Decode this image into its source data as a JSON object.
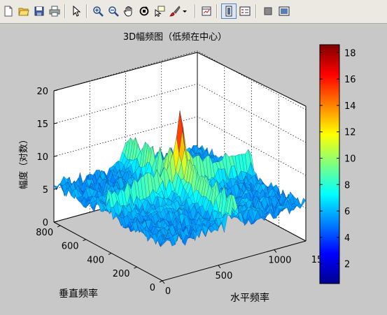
{
  "toolbar": {
    "buttons": [
      {
        "name": "new-figure-icon"
      },
      {
        "name": "open-file-icon"
      },
      {
        "name": "save-icon"
      },
      {
        "name": "print-icon"
      },
      {
        "name": "pointer-arrow-icon"
      },
      {
        "name": "zoom-in-icon"
      },
      {
        "name": "zoom-out-icon"
      },
      {
        "name": "pan-hand-icon"
      },
      {
        "name": "rotate-3d-icon"
      },
      {
        "name": "data-cursor-icon"
      },
      {
        "name": "brush-icon"
      },
      {
        "name": "brush-dropdown-icon"
      },
      {
        "name": "link-plot-icon"
      },
      {
        "name": "colorbar-icon"
      },
      {
        "name": "legend-icon"
      },
      {
        "name": "hide-plot-tools-icon"
      },
      {
        "name": "show-plot-tools-icon"
      }
    ]
  },
  "chart_data": {
    "type": "surface",
    "title": "3D幅频图（低频在中心）",
    "zlabel": "幅度（对数）",
    "xlabel": "水平频率",
    "ylabel": "垂直频率",
    "x_ticks": [
      "0",
      "500",
      "1000",
      "15"
    ],
    "y_ticks": [
      "0",
      "200",
      "400",
      "600",
      "800"
    ],
    "z_ticks": [
      "0",
      "5",
      "10",
      "15",
      "20"
    ],
    "zlim": [
      0,
      20
    ],
    "peak_value": 18.4,
    "background_level": 5.5,
    "colorbar": {
      "ticks": [
        "2",
        "4",
        "6",
        "8",
        "10",
        "12",
        "14",
        "16",
        "18"
      ],
      "range": [
        0.5,
        18.6
      ],
      "colormap": "jet"
    }
  }
}
